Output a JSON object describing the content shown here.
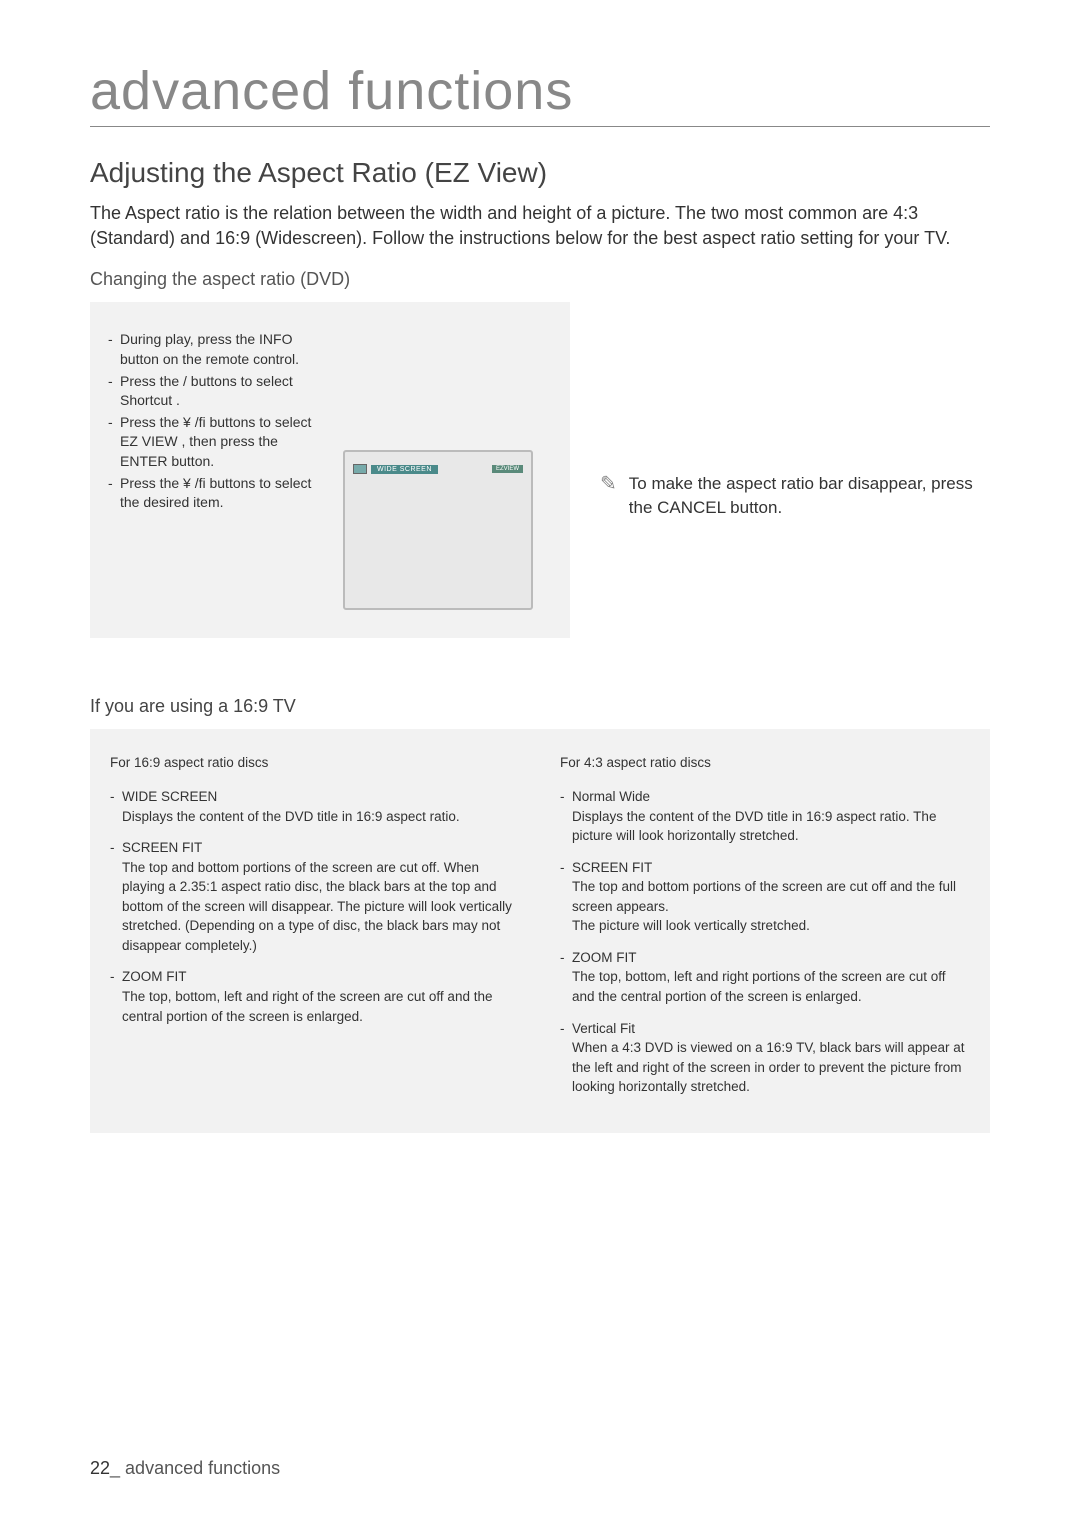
{
  "chapter_title": "advanced functions",
  "section_title": "Adjusting the Aspect Ratio (EZ View)",
  "intro": "The Aspect ratio is the relation between the width and height of a picture. The two most common are 4:3 (Standard) and 16:9 (Widescreen). Follow the instructions below for the best aspect ratio setting for your TV.",
  "subhead": "Changing the aspect ratio (DVD)",
  "steps": [
    "During play, press the INFO button on the remote control.",
    "Press the   /   buttons to select Shortcut .",
    "Press the  ¥ /ﬁ  buttons to select EZ VIEW , then press the ENTER button.",
    "Press the  ¥ /ﬁ  buttons to select the desired item."
  ],
  "tv_label": "WIDE SCREEN",
  "tv_badge": "EZVIEW",
  "note": "To make the aspect ratio bar disappear, press the CANCEL button.",
  "sub2": "If you are using a 16:9 TV",
  "col_left": {
    "head": "For 16:9 aspect ratio discs",
    "items": [
      {
        "name": "WIDE SCREEN",
        "desc": "Displays the content of the DVD title in 16:9 aspect ratio."
      },
      {
        "name": "SCREEN FIT",
        "desc": "The top and bottom portions of the screen are cut off. When playing a 2.35:1 aspect ratio disc, the black bars at the top and bottom of the screen will disappear. The picture will look vertically stretched. (Depending on a type of disc, the black bars may not disappear completely.)"
      },
      {
        "name": "ZOOM FIT",
        "desc": "The top, bottom, left and right of the screen are cut off and the central portion of the screen is enlarged."
      }
    ]
  },
  "col_right": {
    "head": "For 4:3 aspect ratio discs",
    "items": [
      {
        "name": "Normal Wide",
        "desc": "Displays the content of the DVD title in 16:9 aspect ratio. The picture will look horizontally stretched."
      },
      {
        "name": "SCREEN FIT",
        "desc": "The top and bottom portions of the screen are cut off and the full screen appears.\nThe picture will look vertically stretched."
      },
      {
        "name": "ZOOM FIT",
        "desc": "The top, bottom, left and right portions of the screen are cut off and the central portion of the screen is enlarged."
      },
      {
        "name": "Vertical Fit",
        "desc": "When a 4:3 DVD is viewed on a 16:9 TV, black bars will appear at the left and right of the screen in order to prevent the picture from looking horizontally stretched."
      }
    ]
  },
  "footer_page": "22",
  "footer_label": "_ advanced functions"
}
